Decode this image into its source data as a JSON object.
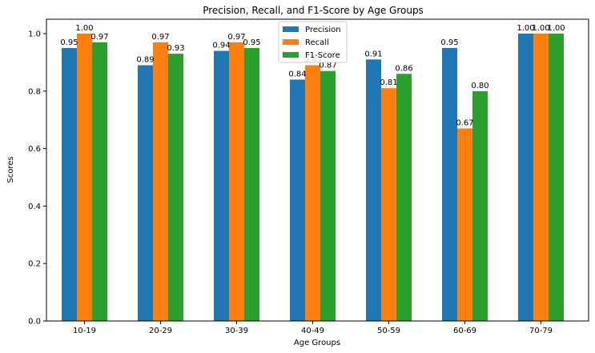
{
  "chart_data": {
    "type": "bar",
    "title": "Precision, Recall, and F1-Score by Age Groups",
    "xlabel": "Age Groups",
    "ylabel": "Scores",
    "ylim": [
      0,
      1.05
    ],
    "yticks": [
      "0.0",
      "0.2",
      "0.4",
      "0.6",
      "0.8",
      "1.0"
    ],
    "categories": [
      "10-19",
      "20-29",
      "30-39",
      "40-49",
      "50-59",
      "60-69",
      "70-79"
    ],
    "series": [
      {
        "name": "Precision",
        "color": "#1f77b4",
        "values": [
          0.95,
          0.89,
          0.94,
          0.84,
          0.91,
          0.95,
          1.0
        ],
        "labels": [
          "0.95",
          "0.89",
          "0.94",
          "0.84",
          "0.91",
          "0.95",
          "1.00"
        ]
      },
      {
        "name": "Recall",
        "color": "#ff7f0e",
        "values": [
          1.0,
          0.97,
          0.97,
          0.89,
          0.81,
          0.67,
          1.0
        ],
        "labels": [
          "1.00",
          "0.97",
          "0.97",
          "0.89",
          "0.81",
          "0.67",
          "1.00"
        ]
      },
      {
        "name": "F1-Score",
        "color": "#2ca02c",
        "values": [
          0.97,
          0.93,
          0.95,
          0.87,
          0.86,
          0.8,
          1.0
        ],
        "labels": [
          "0.97",
          "0.93",
          "0.95",
          "0.87",
          "0.86",
          "0.80",
          "1.00"
        ]
      }
    ],
    "legend": "top-center",
    "grid": false
  }
}
